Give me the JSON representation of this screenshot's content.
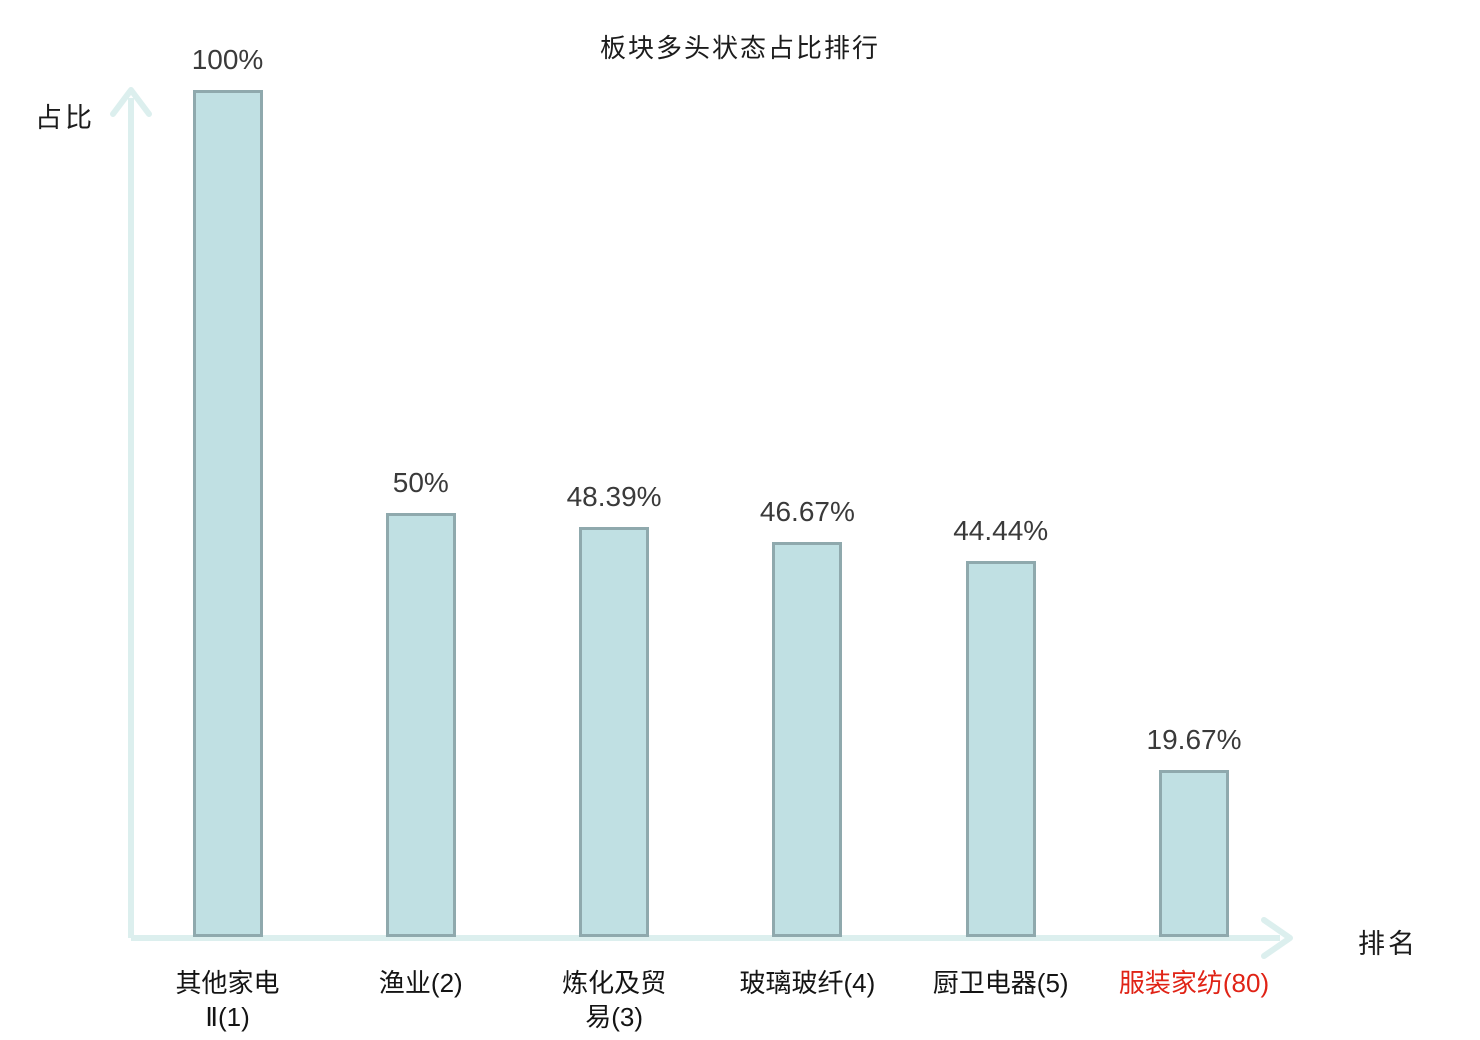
{
  "chart_data": {
    "type": "bar",
    "title": "板块多头状态占比排行",
    "ylabel": "占比",
    "xlabel": "排名",
    "ylim": [
      0,
      100
    ],
    "grid": false,
    "legend_position": "none",
    "value_label_position": "above-bar",
    "categories": [
      {
        "label": "其他家电Ⅱ(1)",
        "rank": 1,
        "lines": [
          "其他家电",
          "Ⅱ(1)"
        ],
        "highlighted": false
      },
      {
        "label": "渔业(2)",
        "rank": 2,
        "lines": [
          "渔业(2)"
        ],
        "highlighted": false
      },
      {
        "label": "炼化及贸易(3)",
        "rank": 3,
        "lines": [
          "炼化及贸",
          "易(3)"
        ],
        "highlighted": false
      },
      {
        "label": "玻璃玻纤(4)",
        "rank": 4,
        "lines": [
          "玻璃玻纤(4)"
        ],
        "highlighted": false
      },
      {
        "label": "厨卫电器(5)",
        "rank": 5,
        "lines": [
          "厨卫电器(5)"
        ],
        "highlighted": false
      },
      {
        "label": "服装家纺(80)",
        "rank": 80,
        "lines": [
          "服装家纺(80)"
        ],
        "highlighted": true
      }
    ],
    "values": [
      100,
      50,
      48.39,
      46.67,
      44.44,
      19.67
    ],
    "value_labels": [
      "100%",
      "50%",
      "48.39%",
      "46.67%",
      "44.44%",
      "19.67%"
    ],
    "colors": {
      "bar_fill": "#c0e0e3",
      "bar_border": "#8fa9ad",
      "axis": "#dcefee",
      "value_text": "#3a3a3a",
      "category_text": "#141414",
      "highlight_text": "#e02316"
    }
  }
}
